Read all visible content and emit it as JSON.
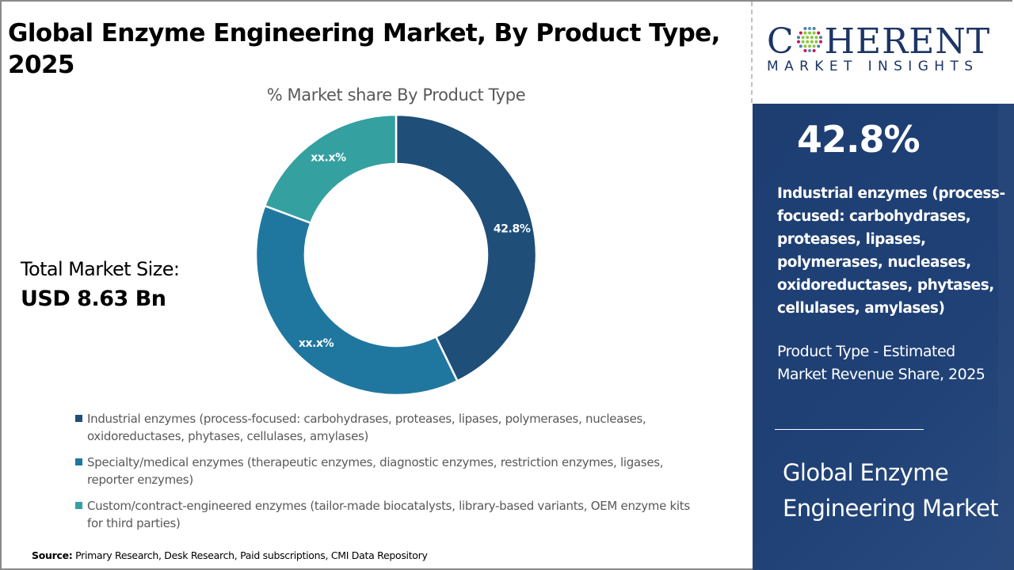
{
  "title": "Global Enzyme Engineering Market, By Product Type, 2025",
  "total_market": {
    "label": "Total Market Size:",
    "value": "USD 8.63 Bn"
  },
  "source": {
    "label": "Source:",
    "text": " Primary Research, Desk Research, Paid subscriptions, CMI Data Repository"
  },
  "logo": {
    "brand_left": "C",
    "brand_right": "HERENT",
    "tagline": "MARKET INSIGHTS",
    "icon": "dotted-globe-icon"
  },
  "highlight_panel": {
    "stat": "42.8%",
    "segment": "Industrial enzymes (process-focused: carbohydrases, proteases, lipases, polymerases, nucleases, oxidoreductases, phytases, cellulases, amylases)",
    "description": "Product Type - Estimated Market Revenue Share, 2025",
    "market_name": "Global Enzyme Engineering Market",
    "background_color": "#1e3f73"
  },
  "chart_data": {
    "type": "pie",
    "variant": "donut",
    "title": "% Market share By Product Type",
    "categories": [
      "Industrial enzymes (process-focused: carbohydrases, proteases, lipases, polymerases, nucleases, oxidoreductases, phytases, cellulases, amylases)",
      "Specialty/medical enzymes (therapeutic enzymes, diagnostic enzymes, restriction enzymes, ligases, reporter enzymes)",
      "Custom/contract-engineered enzymes (tailor-made biocatalysts, library-based variants, OEM enzyme kits for third parties)"
    ],
    "values": [
      42.8,
      37.9,
      19.3
    ],
    "data_labels": [
      "42.8%",
      "xx.x%",
      "xx.x%"
    ],
    "colors": [
      "#1f4e79",
      "#1f77a0",
      "#35a0a0"
    ],
    "start_angle": "top",
    "direction": "clockwise",
    "legend_position": "bottom"
  }
}
